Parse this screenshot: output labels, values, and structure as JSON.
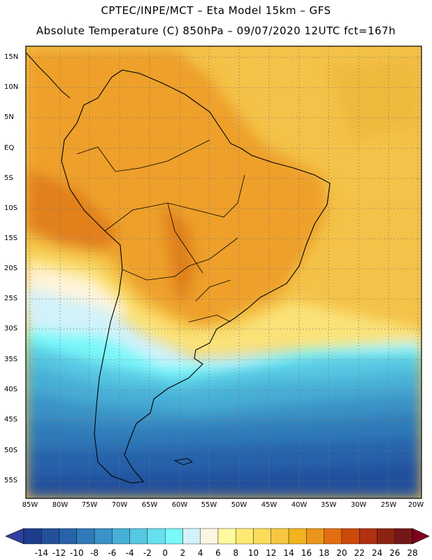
{
  "header": {
    "line1": "CPTEC/INPE/MCT –  Eta Model 15km – GFS",
    "line2": "Absolute Temperature (C) 850hPa – 09/07/2020 12UTC fct=167h"
  },
  "axes": {
    "lat_labels": [
      "15N",
      "10N",
      "5N",
      "EQ",
      "5S",
      "10S",
      "15S",
      "20S",
      "25S",
      "30S",
      "35S",
      "40S",
      "45S",
      "50S",
      "55S"
    ],
    "lon_labels": [
      "85W",
      "80W",
      "75W",
      "70W",
      "65W",
      "60W",
      "55W",
      "50W",
      "45W",
      "40W",
      "35W",
      "30W",
      "25W",
      "20W"
    ]
  },
  "colorbar": {
    "labels": [
      "-14",
      "-12",
      "-10",
      "-8",
      "-6",
      "-4",
      "-2",
      "0",
      "2",
      "4",
      "6",
      "8",
      "10",
      "12",
      "14",
      "16",
      "18",
      "20",
      "22",
      "24",
      "26",
      "28"
    ],
    "colors": [
      "#1e3c8c",
      "#23509c",
      "#2862aa",
      "#2f7ab8",
      "#3a92c6",
      "#47aed6",
      "#56c8e2",
      "#66e0ee",
      "#7af8fa",
      "#d2f2fa",
      "#fff6e2",
      "#fffaa0",
      "#fdea72",
      "#fadc5a",
      "#f6c640",
      "#f2b41e",
      "#ea961c",
      "#e26e10",
      "#cc4a0a",
      "#b03010",
      "#8c2212",
      "#741616"
    ],
    "under_color": "#3040a0",
    "over_color": "#800020"
  }
}
